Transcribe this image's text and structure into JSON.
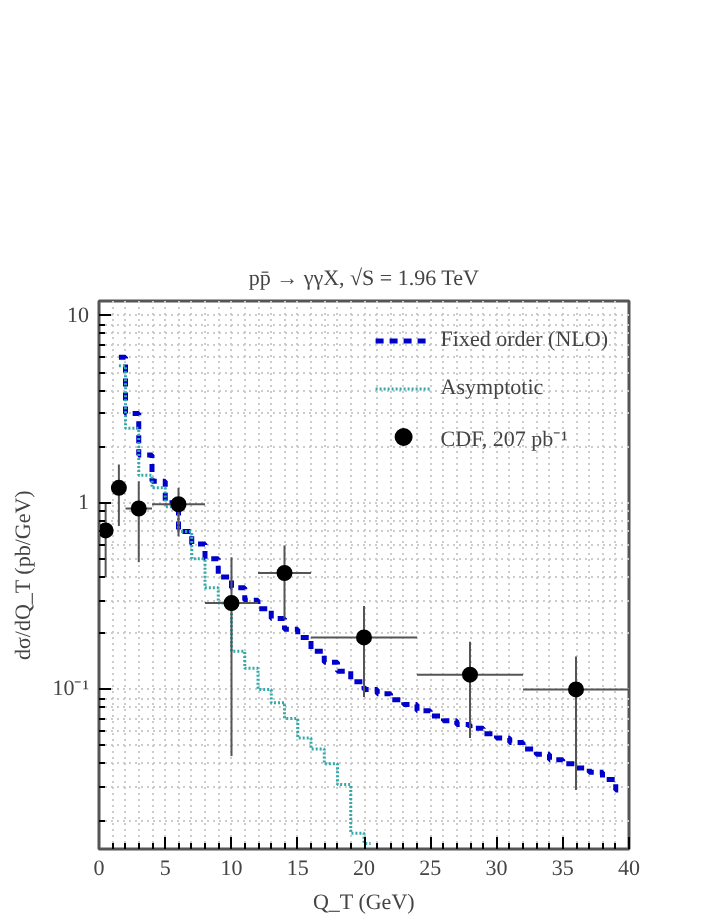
{
  "chart_data": {
    "type": "step",
    "title": "pp̄ → γγX, √S = 1.96 TeV",
    "xlabel": "Q_T (GeV)",
    "ylabel": "dσ/dQ_T (pb/GeV)",
    "log": "y",
    "xlim": [
      0,
      40
    ],
    "ylim": [
      0.014,
      12
    ],
    "xticks": [
      0,
      5,
      10,
      15,
      20,
      25,
      30,
      35,
      40
    ],
    "yticks": [
      {
        "value": 0.1,
        "label": "10⁻¹"
      },
      1,
      10
    ],
    "grid": true,
    "legend": "top right",
    "series": [
      {
        "name": "Fixed order (NLO)",
        "color": "#0000cc",
        "line_style": "dashed",
        "x": [
          1.5,
          2.5,
          3.5,
          4.5,
          5.5,
          6.5,
          7.5,
          8.5,
          9.5,
          10.5,
          11.5,
          12.5,
          13.5,
          14.5,
          15.5,
          16.5,
          17.5,
          18.5,
          19.5,
          20.5,
          21.5,
          22.5,
          23.5,
          24.5,
          25.5,
          26.5,
          27.5,
          28.5,
          29.5,
          30.5,
          31.5,
          32.5,
          33.5,
          34.5,
          35.5,
          36.5,
          37.5,
          38.5,
          39.5
        ],
        "values": [
          6.0,
          3.0,
          1.8,
          1.3,
          1.0,
          0.7,
          0.6,
          0.5,
          0.4,
          0.35,
          0.3,
          0.27,
          0.24,
          0.21,
          0.19,
          0.16,
          0.14,
          0.125,
          0.11,
          0.1,
          0.095,
          0.088,
          0.083,
          0.077,
          0.072,
          0.068,
          0.065,
          0.062,
          0.058,
          0.055,
          0.052,
          0.048,
          0.045,
          0.042,
          0.04,
          0.038,
          0.036,
          0.033,
          0.029
        ]
      },
      {
        "name": "Asymptotic",
        "color": "#33aaaa",
        "line_style": "dotted",
        "x": [
          1.5,
          2.5,
          3.5,
          4.5,
          5.5,
          6.5,
          7.5,
          8.5,
          9.5,
          10.5,
          11.5,
          12.5,
          13.5,
          14.5,
          15.5,
          16.5,
          17.5,
          18.5,
          19.5,
          20.5
        ],
        "values": [
          5.4,
          2.5,
          1.4,
          1.2,
          0.95,
          0.7,
          0.5,
          0.35,
          0.29,
          0.16,
          0.13,
          0.1,
          0.085,
          0.07,
          0.055,
          0.048,
          0.04,
          0.031,
          0.017,
          0.015
        ]
      },
      {
        "name": "CDF, 207 pb⁻¹",
        "type": "scatter",
        "color": "#000000",
        "marker": "circle",
        "x": [
          0.5,
          1.5,
          3,
          6,
          10,
          14,
          20,
          28,
          36
        ],
        "values": [
          0.71,
          1.2,
          0.93,
          0.98,
          0.29,
          0.42,
          0.19,
          0.12,
          0.1
        ],
        "errors": [
          [
            0.4,
            1.0
          ],
          [
            0.75,
            1.6
          ],
          [
            0.48,
            1.3
          ],
          [
            0.66,
            1.2
          ],
          [
            0.044,
            0.51
          ],
          [
            0.24,
            0.59
          ],
          [
            0.091,
            0.28
          ],
          [
            0.055,
            0.18
          ],
          [
            0.029,
            0.15
          ]
        ],
        "xerrors": [
          0.5,
          0.5,
          1,
          2,
          2,
          2,
          4,
          4,
          4
        ]
      }
    ]
  }
}
